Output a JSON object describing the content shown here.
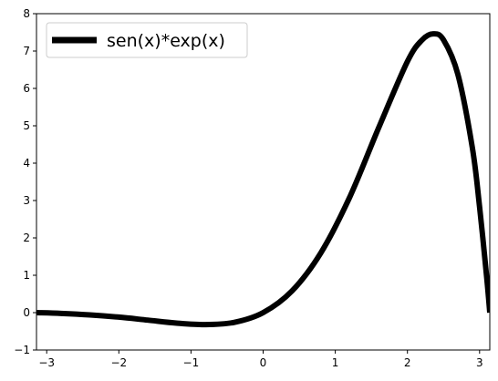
{
  "chart_data": {
    "type": "line",
    "title": "",
    "xlabel": "",
    "ylabel": "",
    "xlim": [
      -3.1416,
      3.1416
    ],
    "ylim": [
      -1,
      8
    ],
    "xticks": [
      -3,
      -2,
      -1,
      0,
      1,
      2,
      3
    ],
    "yticks": [
      -1,
      0,
      1,
      2,
      3,
      4,
      5,
      6,
      7,
      8
    ],
    "xtick_labels": [
      "−3",
      "−2",
      "−1",
      "0",
      "1",
      "2",
      "3"
    ],
    "ytick_labels": [
      "−1",
      "0",
      "1",
      "2",
      "3",
      "4",
      "5",
      "6",
      "7",
      "8"
    ],
    "grid": false,
    "legend_position": "top-left",
    "series": [
      {
        "name": "sen(x)*exp(x)",
        "color": "#000000",
        "x": [
          -3.1416,
          -2.8,
          -2.4,
          -2.0,
          -1.6,
          -1.2,
          -0.8,
          -0.4,
          0.0,
          0.4,
          0.8,
          1.2,
          1.6,
          2.0,
          2.2,
          2.3562,
          2.5,
          2.7,
          2.9,
          3.0,
          3.1,
          3.1416
        ],
        "y": [
          0.0,
          -0.02,
          -0.06,
          -0.12,
          -0.2,
          -0.28,
          -0.32,
          -0.26,
          0.0,
          0.58,
          1.6,
          3.09,
          4.94,
          6.72,
          7.29,
          7.46,
          7.3,
          6.37,
          4.41,
          2.83,
          0.92,
          0.0
        ]
      }
    ]
  }
}
